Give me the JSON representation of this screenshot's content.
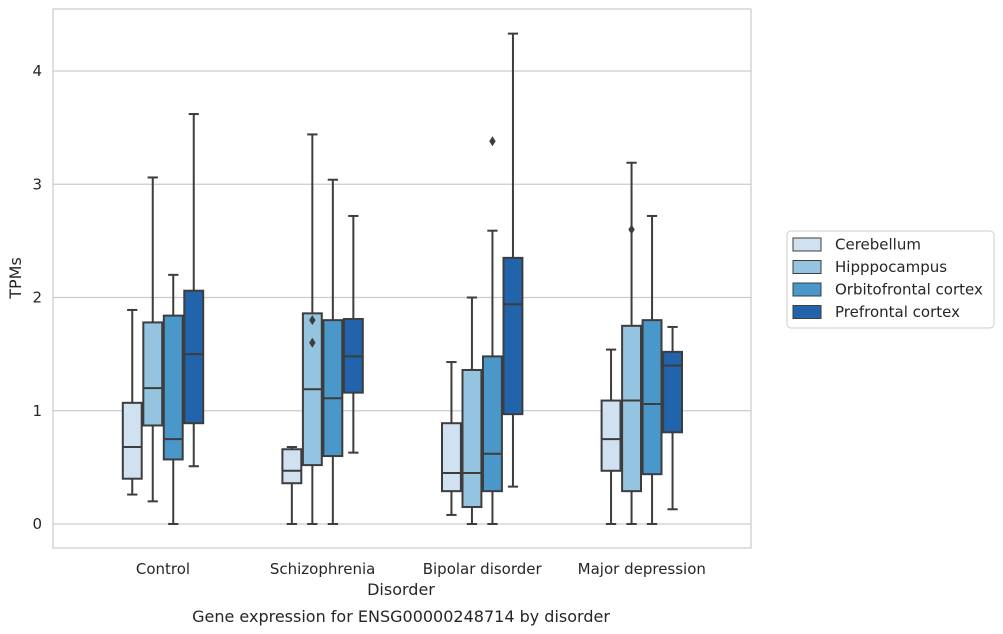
{
  "chart_data": {
    "type": "box",
    "title": "",
    "caption": "Gene expression for ENSG00000248714 by disorder",
    "xlabel": "Disorder",
    "ylabel": "TPMs",
    "ylim": [
      -0.2,
      4.55
    ],
    "yticks": [
      0,
      1,
      2,
      3,
      4
    ],
    "grid": true,
    "legend_position": "right",
    "categories": [
      "Control",
      "Schizophrenia",
      "Bipolar disorder",
      "Major depression"
    ],
    "series": [
      {
        "name": "Cerebellum",
        "color": "#d0e1f2",
        "boxes": [
          {
            "whislo": 0.26,
            "q1": 0.4,
            "med": 0.68,
            "q3": 1.07,
            "whishi": 1.89,
            "fliers": []
          },
          {
            "whislo": 0.0,
            "q1": 0.36,
            "med": 0.47,
            "q3": 0.66,
            "whishi": 0.68,
            "fliers": []
          },
          {
            "whislo": 0.08,
            "q1": 0.29,
            "med": 0.45,
            "q3": 0.89,
            "whishi": 1.43,
            "fliers": []
          },
          {
            "whislo": 0.0,
            "q1": 0.47,
            "med": 0.75,
            "q3": 1.09,
            "whishi": 1.54,
            "fliers": []
          }
        ]
      },
      {
        "name": "Hipppocampus",
        "color": "#94c4df",
        "boxes": [
          {
            "whislo": 0.2,
            "q1": 0.87,
            "med": 1.2,
            "q3": 1.78,
            "whishi": 3.06,
            "fliers": []
          },
          {
            "whislo": 0.0,
            "q1": 0.52,
            "med": 1.19,
            "q3": 1.86,
            "whishi": 3.44,
            "fliers": [
              1.6,
              1.8
            ]
          },
          {
            "whislo": 0.0,
            "q1": 0.15,
            "med": 0.45,
            "q3": 1.36,
            "whishi": 2.0,
            "fliers": []
          },
          {
            "whislo": 0.0,
            "q1": 0.29,
            "med": 1.09,
            "q3": 1.75,
            "whishi": 3.19,
            "fliers": [
              2.6
            ]
          }
        ]
      },
      {
        "name": "Orbitofrontal cortex",
        "color": "#4a98c9",
        "boxes": [
          {
            "whislo": 0.0,
            "q1": 0.57,
            "med": 0.75,
            "q3": 1.84,
            "whishi": 2.2,
            "fliers": []
          },
          {
            "whislo": 0.0,
            "q1": 0.6,
            "med": 1.11,
            "q3": 1.8,
            "whishi": 3.04,
            "fliers": []
          },
          {
            "whislo": 0.0,
            "q1": 0.29,
            "med": 0.62,
            "q3": 1.48,
            "whishi": 2.59,
            "fliers": [
              3.38
            ]
          },
          {
            "whislo": 0.0,
            "q1": 0.44,
            "med": 1.06,
            "q3": 1.8,
            "whishi": 2.72,
            "fliers": []
          }
        ]
      },
      {
        "name": "Prefrontal cortex",
        "color": "#2164ab",
        "boxes": [
          {
            "whislo": 0.51,
            "q1": 0.89,
            "med": 1.5,
            "q3": 2.06,
            "whishi": 3.62,
            "fliers": []
          },
          {
            "whislo": 0.63,
            "q1": 1.16,
            "med": 1.48,
            "q3": 1.81,
            "whishi": 2.72,
            "fliers": []
          },
          {
            "whislo": 0.33,
            "q1": 0.97,
            "med": 1.94,
            "q3": 2.35,
            "whishi": 4.33,
            "fliers": []
          },
          {
            "whislo": 0.13,
            "q1": 0.81,
            "med": 1.4,
            "q3": 1.52,
            "whishi": 1.74,
            "fliers": []
          }
        ]
      }
    ]
  }
}
